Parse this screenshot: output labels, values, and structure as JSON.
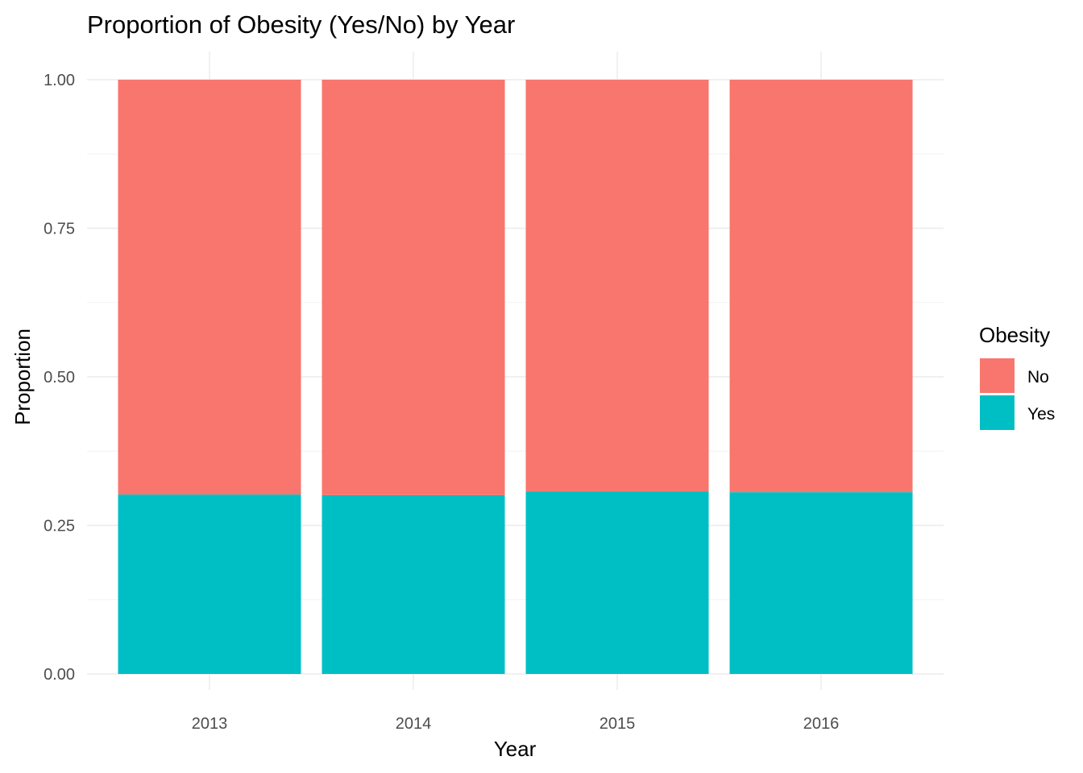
{
  "chart_data": {
    "type": "bar",
    "stacked": true,
    "title": "Proportion of Obesity (Yes/No) by Year",
    "xlabel": "Year",
    "ylabel": "Proportion",
    "categories": [
      "2013",
      "2014",
      "2015",
      "2016"
    ],
    "series": [
      {
        "name": "No",
        "color": "#F8766D",
        "values": [
          0.698,
          0.699,
          0.693,
          0.694
        ]
      },
      {
        "name": "Yes",
        "color": "#00BFC4",
        "values": [
          0.302,
          0.301,
          0.307,
          0.306
        ]
      }
    ],
    "ylim": [
      0,
      1
    ],
    "yticks": [
      "0.00",
      "0.25",
      "0.50",
      "0.75",
      "1.00"
    ],
    "grid": true,
    "legend": {
      "title": "Obesity",
      "placement": "right"
    }
  }
}
